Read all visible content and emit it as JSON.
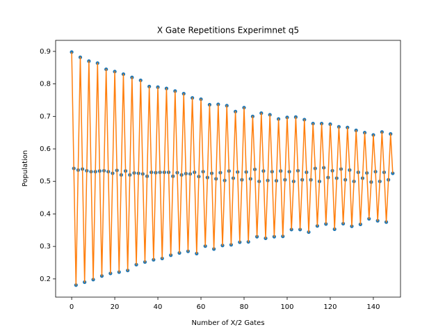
{
  "chart_data": {
    "type": "line",
    "title": "X Gate Repetitions Experimnet q5",
    "x_label": "Number of X/2 Gates",
    "y_label": "Population",
    "marker_color": "#1f77b4",
    "line_color": "#ff7f0e",
    "xlim": [
      -7.45,
      152.6
    ],
    "ylim": [
      0.144,
      0.934
    ],
    "xticks": [
      0,
      20,
      40,
      60,
      80,
      100,
      120,
      140
    ],
    "yticks": [
      0.2,
      0.3,
      0.4,
      0.5,
      0.6,
      0.7,
      0.8,
      0.9
    ],
    "x": [
      0,
      1,
      2,
      3,
      4,
      5,
      6,
      7,
      8,
      9,
      10,
      11,
      12,
      13,
      14,
      15,
      16,
      17,
      18,
      19,
      20,
      21,
      22,
      23,
      24,
      25,
      26,
      27,
      28,
      29,
      30,
      31,
      32,
      33,
      34,
      35,
      36,
      37,
      38,
      39,
      40,
      41,
      42,
      43,
      44,
      45,
      46,
      47,
      48,
      49,
      50,
      51,
      52,
      53,
      54,
      55,
      56,
      57,
      58,
      59,
      60,
      61,
      62,
      63,
      64,
      65,
      66,
      67,
      68,
      69,
      70,
      71,
      72,
      73,
      74,
      75,
      76,
      77,
      78,
      79,
      80,
      81,
      82,
      83,
      84,
      85,
      86,
      87,
      88,
      89,
      90,
      91,
      92,
      93,
      94,
      95,
      96,
      97,
      98,
      99,
      100,
      101,
      102,
      103,
      104,
      105,
      106,
      107,
      108,
      109,
      110,
      111,
      112,
      113,
      114,
      115,
      116,
      117,
      118,
      119,
      120,
      121,
      122,
      123,
      124,
      125,
      126,
      127,
      128,
      129,
      130,
      131,
      132,
      133,
      134,
      135,
      136,
      137,
      138,
      139,
      140,
      141,
      142,
      143,
      144,
      145,
      146,
      147,
      148,
      149
    ],
    "values": [
      0.898,
      0.54,
      0.181,
      0.535,
      0.882,
      0.538,
      0.19,
      0.533,
      0.87,
      0.53,
      0.198,
      0.53,
      0.864,
      0.532,
      0.209,
      0.533,
      0.845,
      0.53,
      0.217,
      0.525,
      0.838,
      0.534,
      0.221,
      0.52,
      0.83,
      0.532,
      0.226,
      0.52,
      0.82,
      0.526,
      0.244,
      0.525,
      0.811,
      0.523,
      0.252,
      0.516,
      0.792,
      0.528,
      0.259,
      0.527,
      0.79,
      0.528,
      0.263,
      0.528,
      0.786,
      0.528,
      0.273,
      0.516,
      0.778,
      0.527,
      0.28,
      0.52,
      0.77,
      0.524,
      0.285,
      0.523,
      0.757,
      0.528,
      0.278,
      0.515,
      0.753,
      0.53,
      0.301,
      0.512,
      0.736,
      0.525,
      0.292,
      0.508,
      0.737,
      0.527,
      0.303,
      0.503,
      0.733,
      0.532,
      0.305,
      0.51,
      0.715,
      0.529,
      0.313,
      0.505,
      0.727,
      0.529,
      0.314,
      0.508,
      0.7,
      0.537,
      0.33,
      0.5,
      0.71,
      0.532,
      0.325,
      0.503,
      0.705,
      0.53,
      0.33,
      0.502,
      0.692,
      0.532,
      0.331,
      0.505,
      0.697,
      0.53,
      0.352,
      0.5,
      0.698,
      0.533,
      0.352,
      0.505,
      0.69,
      0.528,
      0.344,
      0.505,
      0.678,
      0.54,
      0.363,
      0.5,
      0.678,
      0.542,
      0.369,
      0.512,
      0.676,
      0.533,
      0.353,
      0.51,
      0.668,
      0.538,
      0.37,
      0.505,
      0.666,
      0.535,
      0.362,
      0.5,
      0.657,
      0.528,
      0.368,
      0.51,
      0.65,
      0.526,
      0.385,
      0.498,
      0.643,
      0.53,
      0.379,
      0.5,
      0.652,
      0.528,
      0.375,
      0.505,
      0.646,
      0.525
    ]
  }
}
